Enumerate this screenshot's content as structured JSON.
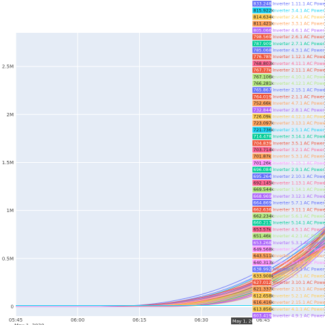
{
  "chart_data": {
    "type": "line",
    "title": "",
    "xlabel": "",
    "ylabel": "",
    "x_ticks": [
      "05:45",
      "06:00",
      "06:15",
      "06:30",
      "06:45"
    ],
    "x_tick_date": "May 1, 2020",
    "x_hover_label": "May 1, 20",
    "x_range": [
      "05:45",
      "07:00"
    ],
    "y_ticks": [
      "0",
      "0.5M",
      "1M",
      "1.5M",
      "2M",
      "2.5M"
    ],
    "ylim": [
      -100000,
      2850000
    ],
    "grid": true,
    "hover_time": "07:00",
    "hover": [
      {
        "value": "833.248k",
        "name": "Inverter 1.11.1 AC Power",
        "color": "#636efa"
      },
      {
        "value": "815.922k",
        "name": "Inverter 3.4.1 AC Power",
        "color": "#19d3f3"
      },
      {
        "value": "814.634k",
        "name": "Inverter 2.4.1 AC Power",
        "color": "#fecb52"
      },
      {
        "value": "811.421k",
        "name": "Inverter 3.3.1 AC Power",
        "color": "#ffa15a"
      },
      {
        "value": "805.066k",
        "name": "Inverter 4.6.1 AC Power",
        "color": "#ab63fa"
      },
      {
        "value": "798.569k",
        "name": "Inverter 2.6.1 AC Power",
        "color": "#ef553b"
      },
      {
        "value": "787.909k",
        "name": "Inverter 2.7.1 AC Power",
        "color": "#00cc96"
      },
      {
        "value": "785.068k",
        "name": "Inverter 4.3.1 AC Power",
        "color": "#636efa"
      },
      {
        "value": "776.785k",
        "name": "Inverter 1.12.1 AC Power",
        "color": "#ef553b"
      },
      {
        "value": "768.803k",
        "name": "Inverter 4.11.1 AC Power",
        "color": "#ff6692"
      },
      {
        "value": "767.77k",
        "name": "Inverter 2.11.1 AC Power",
        "color": "#ef553b"
      },
      {
        "value": "767.106k",
        "name": "Inverter 4.10.1 AC Power",
        "color": "#b6e880"
      },
      {
        "value": "766.281k",
        "name": "Inverter 4.12.1 AC Power",
        "color": "#b6e880"
      },
      {
        "value": "765.867k",
        "name": "Inverter 2.15.1 AC Power",
        "color": "#636efa"
      },
      {
        "value": "764.019k",
        "name": "Inverter 2.1.1 AC Power",
        "color": "#ef553b"
      },
      {
        "value": "752.66k",
        "name": "Inverter 4.7.1 AC Power",
        "color": "#ffa15a"
      },
      {
        "value": "732.844k",
        "name": "Inverter 2.8.1 AC Power",
        "color": "#ab63fa"
      },
      {
        "value": "726.09k",
        "name": "Inverter 4.12.1 AC Power",
        "color": "#fecb52"
      },
      {
        "value": "723.097k",
        "name": "Inverter 3.13.1 AC Power",
        "color": "#ffa15a"
      },
      {
        "value": "721.736k",
        "name": "Inverter 2.5.1 AC Power",
        "color": "#19d3f3"
      },
      {
        "value": "714.478k",
        "name": "Inverter 3.14.1 AC Power",
        "color": "#00cc96"
      },
      {
        "value": "704.839k",
        "name": "Inverter 3.5.1 AC Power",
        "color": "#ef553b"
      },
      {
        "value": "703.714k",
        "name": "Inverter 3.2.1 AC Power",
        "color": "#ff6692"
      },
      {
        "value": "701.87k",
        "name": "Inverter 5.3.1 AC Power",
        "color": "#ffa15a"
      },
      {
        "value": "701.26k",
        "name": "Inverter 5.15.1 AC Power",
        "color": "#ff97ff"
      },
      {
        "value": "696.084k",
        "name": "Inverter 2.9.1 AC Power",
        "color": "#00cc96"
      },
      {
        "value": "695.264k",
        "name": "Inverter 2.10.1 AC Power",
        "color": "#636efa"
      },
      {
        "value": "692.145k",
        "name": "Inverter 1.13.1 AC Power",
        "color": "#ff6692"
      },
      {
        "value": "669.544k",
        "name": "Inverter 1.14.1 AC Power",
        "color": "#b6e880"
      },
      {
        "value": "668.969k",
        "name": "Inverter 3.12.1 AC Power",
        "color": "#ab63fa"
      },
      {
        "value": "664.869k",
        "name": "Inverter 5.7.1 AC Power",
        "color": "#636efa"
      },
      {
        "value": "662.636k",
        "name": "Inverter 3.11.1 AC Power",
        "color": "#ef553b"
      },
      {
        "value": "662.234k",
        "name": "Inverter 5.6.1 AC Power",
        "color": "#b6e880"
      },
      {
        "value": "660.213k",
        "name": "Inverter 5.14.1 AC Power",
        "color": "#00cc96"
      },
      {
        "value": "653.57k",
        "name": "Inverter 4.5.1 AC Power",
        "color": "#ff6692"
      },
      {
        "value": "651.46k",
        "name": "Inverter 4.2.1 AC Power",
        "color": "#b6e880"
      },
      {
        "value": "653.268k",
        "name": "Inverter 5.3.1 AC Power",
        "color": "#ab63fa"
      },
      {
        "value": "649.568k",
        "name": "Inverter 5.8.1 AC Power",
        "color": "#ff97ff"
      },
      {
        "value": "643.511k",
        "name": "Inverter 1.3.1 AC Power",
        "color": "#ffa15a"
      },
      {
        "value": "640.313k",
        "name": "Inverter 5.11.1 AC Power",
        "color": "#ff97ff"
      },
      {
        "value": "638.992k",
        "name": "Inverter 1.1.1 AC Power",
        "color": "#636efa"
      },
      {
        "value": "633.908k",
        "name": "Inverter 3.3.1 AC Power",
        "color": "#fecb52"
      },
      {
        "value": "627.012k",
        "name": "Inverter 3.10.1 AC Power",
        "color": "#ef553b"
      },
      {
        "value": "621.337k",
        "name": "Inverter 2.13.1 AC Power",
        "color": "#ffa15a"
      },
      {
        "value": "612.658k",
        "name": "Inverter 5.2.1 AC Power",
        "color": "#fecb52"
      },
      {
        "value": "616.416k",
        "name": "Inverter 2.15.1 AC Power",
        "color": "#ffa15a"
      },
      {
        "value": "613.856k",
        "name": "Inverter 4.1.1 AC Power",
        "color": "#fecb52"
      },
      {
        "value": "603.419k",
        "name": "Inverter 4.9.1 AC Power",
        "color": "#ab63fa"
      }
    ]
  }
}
